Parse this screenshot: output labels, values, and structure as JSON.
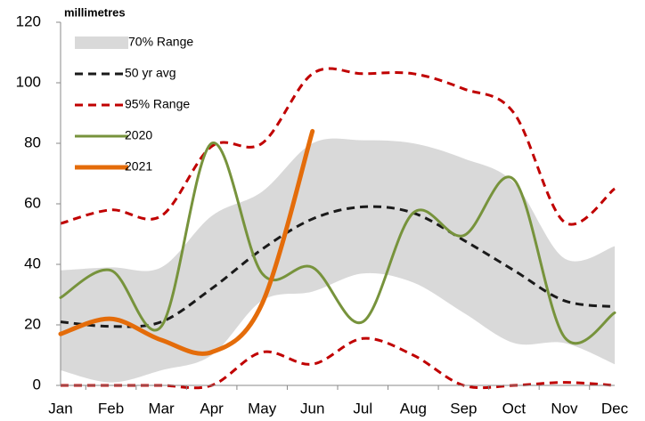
{
  "chart_data": {
    "type": "line",
    "y_label": "millimetres",
    "categories": [
      "Jan",
      "Feb",
      "Mar",
      "Apr",
      "May",
      "Jun",
      "Jul",
      "Aug",
      "Sep",
      "Oct",
      "Nov",
      "Dec"
    ],
    "ylim": [
      0,
      120
    ],
    "yticks": [
      0,
      20,
      40,
      60,
      80,
      100,
      120
    ],
    "series": [
      {
        "name": "70% Range",
        "color": "#d9d9d9",
        "style": "band",
        "low": [
          5,
          1,
          5,
          10,
          28,
          31,
          37,
          34,
          24,
          14,
          14,
          7
        ],
        "high": [
          38,
          39,
          39,
          56,
          64,
          80,
          81,
          80,
          75,
          67,
          42,
          46
        ]
      },
      {
        "name": "50 yr avg",
        "color": "#1a1a1a",
        "style": "dashed",
        "values": [
          21,
          19.5,
          21,
          32,
          45,
          55,
          59,
          57,
          48,
          38,
          28,
          26
        ]
      },
      {
        "name": "95% Range",
        "color": "#c00000",
        "style": "dashed-pair",
        "low": [
          0,
          0,
          0,
          0,
          11,
          7,
          15.5,
          10,
          0,
          0,
          1,
          0
        ],
        "high": [
          53.5,
          58,
          56,
          79,
          80,
          103,
          103,
          103,
          98,
          90,
          54,
          65
        ]
      },
      {
        "name": "2020",
        "color": "#77933c",
        "style": "solid",
        "values": [
          29,
          38,
          19.5,
          80,
          37,
          39,
          21,
          57,
          49.5,
          68,
          16,
          24
        ]
      },
      {
        "name": "2021",
        "color": "#e46c0a",
        "style": "thick",
        "values": [
          17,
          22,
          15,
          11,
          27,
          84,
          null,
          null,
          null,
          null,
          null,
          null
        ]
      }
    ]
  }
}
